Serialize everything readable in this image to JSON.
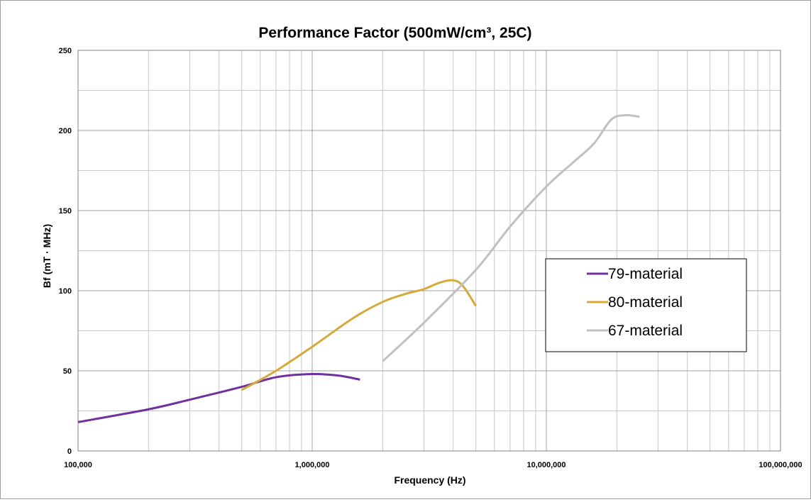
{
  "chart_data": {
    "type": "line",
    "title": "Performance Factor (500mW/cm³, 25C)",
    "xlabel": "Frequency (Hz)",
    "ylabel": "Bf (mT · MHz)",
    "x_scale": "log",
    "xlim": [
      100000,
      100000000
    ],
    "ylim": [
      0,
      250
    ],
    "x_ticks": [
      100000,
      1000000,
      10000000,
      100000000
    ],
    "x_tick_labels": [
      "100,000",
      "1,000,000",
      "10,000,000",
      "100,000,000"
    ],
    "y_ticks": [
      0,
      50,
      100,
      150,
      200,
      250
    ],
    "y_tick_labels": [
      "0",
      "50",
      "100",
      "150",
      "200",
      "250"
    ],
    "grid": true,
    "legend_position": "right",
    "series": [
      {
        "name": "79-material",
        "color": "#7030a0",
        "x": [
          100000,
          200000,
          300000,
          500000,
          700000,
          1000000,
          1300000,
          1600000
        ],
        "y": [
          18,
          26,
          32,
          40,
          46,
          48,
          47,
          44.5
        ]
      },
      {
        "name": "80-material",
        "color": "#d4aa3a",
        "x": [
          500000,
          700000,
          1000000,
          1500000,
          2000000,
          2500000,
          3000000,
          3500000,
          4000000,
          4400000,
          5000000
        ],
        "y": [
          38,
          50,
          65,
          83,
          93,
          98,
          101,
          105,
          106.5,
          103,
          90.5
        ]
      },
      {
        "name": "67-material",
        "color": "#c0c0c0",
        "x": [
          2000000,
          3000000,
          5000000,
          7000000,
          10000000,
          13000000,
          16000000,
          19000000,
          22000000,
          25000000
        ],
        "y": [
          56,
          80,
          113,
          140,
          165,
          180,
          192,
          207,
          209.5,
          208.5
        ]
      }
    ]
  }
}
